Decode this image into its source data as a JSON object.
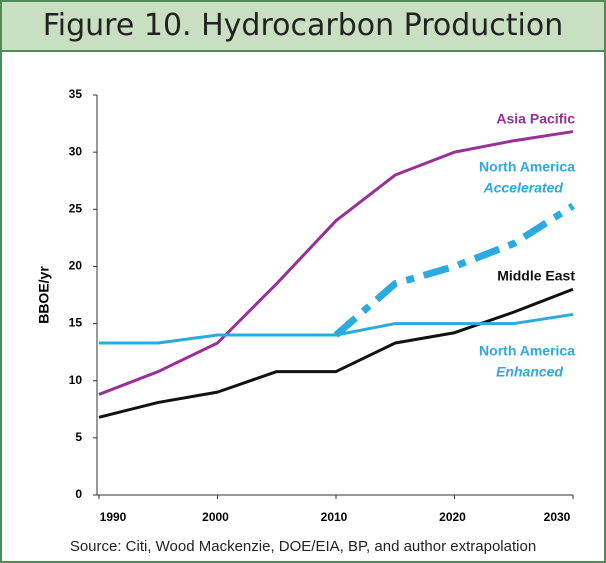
{
  "chart_data": {
    "type": "line",
    "title": "Figure 10. Hydrocarbon Production",
    "y_label": "BBOE/yr",
    "source": "Source: Citi, Wood Mackenzie, DOE/EIA, BP, and author extrapolation",
    "x": [
      1990,
      1995,
      2000,
      2005,
      2010,
      2015,
      2020,
      2025,
      2030
    ],
    "xlim": [
      1990,
      2030
    ],
    "xticks": [
      1990,
      2000,
      2010,
      2020,
      2030
    ],
    "ylim": [
      0,
      35
    ],
    "yticks": [
      0,
      5,
      10,
      15,
      20,
      25,
      30,
      35
    ],
    "series": [
      {
        "name": "Asia Pacific",
        "color": "#9a2f98",
        "values": [
          8.8,
          10.8,
          13.3,
          18.5,
          24,
          28,
          30,
          31,
          31.8
        ]
      },
      {
        "name": "North America",
        "variant": "Accelerated",
        "color": "#29abe2",
        "dashed": true,
        "values": [
          null,
          null,
          null,
          null,
          14,
          18.5,
          20,
          22,
          25.3
        ]
      },
      {
        "name": "Middle East",
        "color": "#111111",
        "values": [
          6.8,
          8.1,
          9,
          10.8,
          10.8,
          13.3,
          14.2,
          16,
          18
        ]
      },
      {
        "name": "North America",
        "variant": "Enhanced",
        "color": "#29abe2",
        "values": [
          13.3,
          13.3,
          14,
          14,
          14,
          15,
          15,
          15,
          15.8
        ]
      }
    ]
  }
}
